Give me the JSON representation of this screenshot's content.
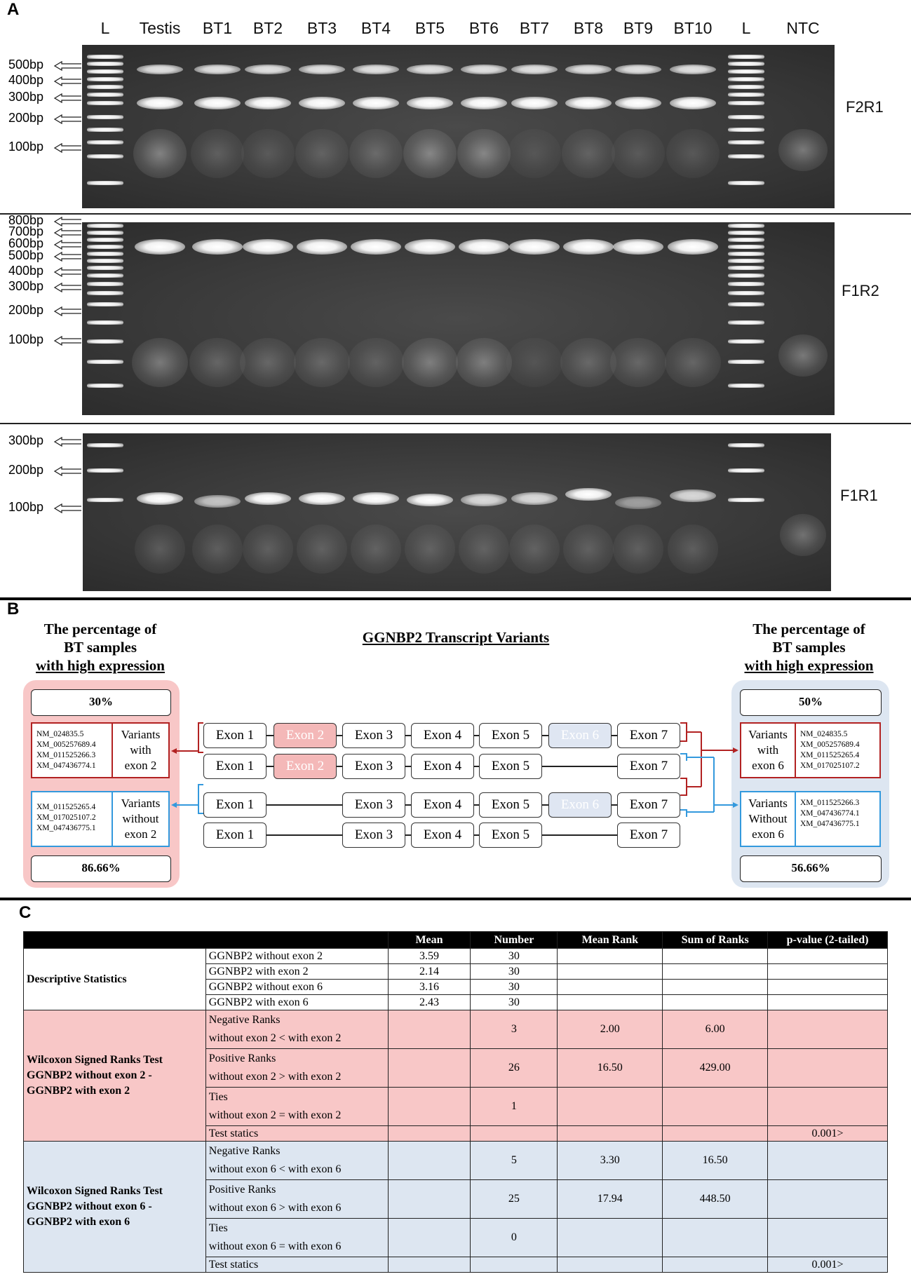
{
  "panels": {
    "a": "A",
    "b": "B",
    "c": "C"
  },
  "gel": {
    "lanes": [
      "L",
      "Testis",
      "BT1",
      "BT2",
      "BT3",
      "BT4",
      "BT5",
      "BT6",
      "BT7",
      "BT8",
      "BT9",
      "BT10",
      "L",
      "NTC"
    ],
    "gel1": {
      "primer": "F2R1",
      "bp": [
        "500bp",
        "400bp",
        "300bp",
        "200bp",
        "100bp"
      ]
    },
    "gel2": {
      "primer": "F1R2",
      "bp": [
        "800bp",
        "700bp",
        "600bp",
        "500bp",
        "400bp",
        "300bp",
        "200bp",
        "100bp"
      ]
    },
    "gel3": {
      "primer": "F1R1",
      "bp": [
        "300bp",
        "200bp",
        "100bp"
      ]
    }
  },
  "panel_b": {
    "left_heading": [
      "The percentage of",
      "BT samples",
      "with high expression"
    ],
    "right_heading": [
      "The percentage of",
      "BT samples",
      "with high expression"
    ],
    "title": "GGNBP2 Transcript Variants",
    "left_top_pct": "30%",
    "left_bottom_pct": "86.66%",
    "right_top_pct": "50%",
    "right_bottom_pct": "56.66%",
    "left_top_list": [
      "NM_024835.5",
      "XM_005257689.4",
      "XM_011525266.3",
      "XM_047436774.1"
    ],
    "left_top_label": [
      "Variants",
      "with",
      "exon 2"
    ],
    "left_bottom_list": [
      "XM_011525265.4",
      "XM_017025107.2",
      "XM_047436775.1"
    ],
    "left_bottom_label": [
      "Variants",
      "without",
      "exon 2"
    ],
    "right_top_label": [
      "Variants",
      "with",
      "exon 6"
    ],
    "right_top_list": [
      "NM_024835.5",
      "XM_005257689.4",
      "XM_011525265.4",
      "XM_017025107.2"
    ],
    "right_bottom_label": [
      "Variants",
      "Without",
      "exon 6"
    ],
    "right_bottom_list": [
      "XM_011525266.3",
      "XM_047436774.1",
      "XM_047436775.1"
    ],
    "exons": [
      "Exon 1",
      "Exon 2",
      "Exon 3",
      "Exon 4",
      "Exon 5",
      "Exon 6",
      "Exon 7"
    ]
  },
  "table": {
    "headers": [
      "Mean",
      "Number",
      "Mean Rank",
      "Sum of Ranks",
      "p-value (2-tailed)"
    ],
    "desc_title": "Descriptive Statistics",
    "desc_rows": [
      {
        "label": "GGNBP2 without exon 2",
        "mean": "3.59",
        "n": "30"
      },
      {
        "label": "GGNBP2 with exon 2",
        "mean": "2.14",
        "n": "30"
      },
      {
        "label": "GGNBP2 without exon 6",
        "mean": "3.16",
        "n": "30"
      },
      {
        "label": "GGNBP2 with exon 6",
        "mean": "2.43",
        "n": "30"
      }
    ],
    "w2_title": [
      "Wilcoxon Signed Ranks Test",
      "GGNBP2 without exon 2 -",
      "GGNBP2 with exon 2"
    ],
    "w2_rows": [
      {
        "l1": "Negative Ranks",
        "l2": "without exon 2 < with exon 2",
        "n": "3",
        "mr": "2.00",
        "sr": "6.00"
      },
      {
        "l1": "Positive Ranks",
        "l2": "without exon 2 > with exon 2",
        "n": "26",
        "mr": "16.50",
        "sr": "429.00"
      },
      {
        "l1": "Ties",
        "l2": "without exon 2 = with exon 2",
        "n": "1",
        "mr": "",
        "sr": ""
      }
    ],
    "w2_test": {
      "label": "Test statics",
      "p": "0.001>"
    },
    "w6_title": [
      "Wilcoxon Signed Ranks Test",
      "GGNBP2 without exon 6 -",
      "GGNBP2 with exon 6"
    ],
    "w6_rows": [
      {
        "l1": "Negative Ranks",
        "l2": "without exon 6 < with exon 6",
        "n": "5",
        "mr": "3.30",
        "sr": "16.50"
      },
      {
        "l1": "Positive Ranks",
        "l2": "without exon 6 > with exon 6",
        "n": "25",
        "mr": "17.94",
        "sr": "448.50"
      },
      {
        "l1": "Ties",
        "l2": "without exon 6 = with exon 6",
        "n": "0",
        "mr": "",
        "sr": ""
      }
    ],
    "w6_test": {
      "label": "Test statics",
      "p": "0.001>"
    }
  },
  "colors": {
    "red_line": "#b22222",
    "blue_line": "#3399dd",
    "pink_fill": "#f8c7c7",
    "blue_fill": "#dde6f1"
  }
}
